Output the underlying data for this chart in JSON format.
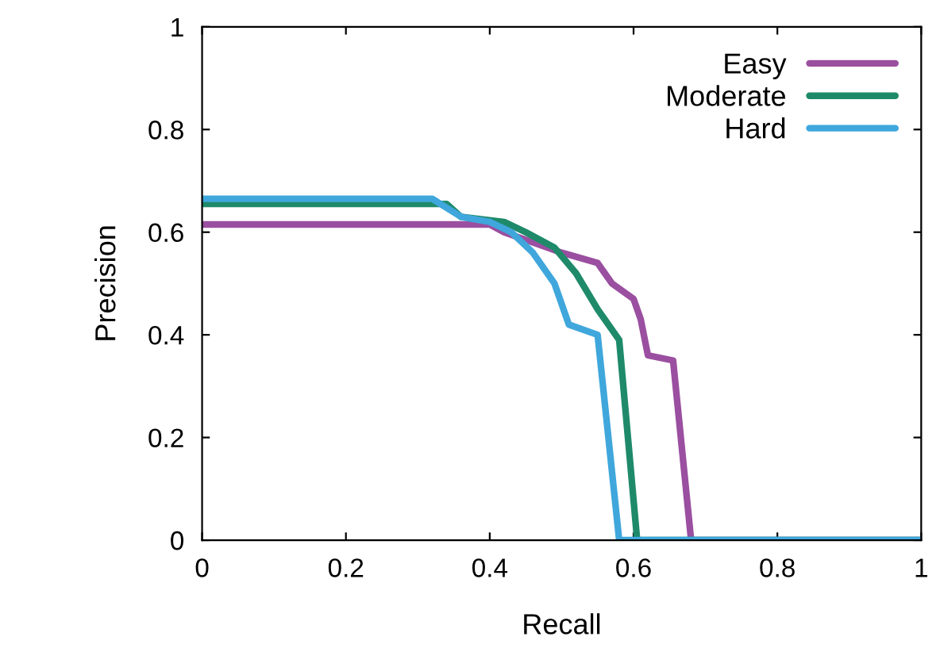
{
  "chart_data": {
    "type": "line",
    "xlabel": "Recall",
    "ylabel": "Precision",
    "xlim": [
      0,
      1
    ],
    "ylim": [
      0,
      1
    ],
    "xticks": [
      0,
      0.2,
      0.4,
      0.6,
      0.8,
      1
    ],
    "yticks": [
      0,
      0.2,
      0.4,
      0.6,
      0.8,
      1
    ],
    "grid": false,
    "legend": "top right",
    "marker": "none",
    "line_style": "solid",
    "series": [
      {
        "name": "Easy",
        "color": "#9a4fa0",
        "x": [
          0,
          0.4,
          0.42,
          0.45,
          0.5,
          0.55,
          0.57,
          0.6,
          0.61,
          0.62,
          0.655,
          0.68,
          1
        ],
        "values": [
          0.615,
          0.615,
          0.6,
          0.585,
          0.56,
          0.54,
          0.5,
          0.47,
          0.43,
          0.36,
          0.35,
          0,
          0
        ]
      },
      {
        "name": "Moderate",
        "color": "#1f8a6a",
        "x": [
          0,
          0.34,
          0.36,
          0.42,
          0.45,
          0.49,
          0.52,
          0.55,
          0.58,
          0.605,
          1
        ],
        "values": [
          0.655,
          0.655,
          0.63,
          0.62,
          0.6,
          0.57,
          0.52,
          0.45,
          0.39,
          0,
          0
        ]
      },
      {
        "name": "Hard",
        "color": "#3fa7dc",
        "x": [
          0,
          0.32,
          0.36,
          0.4,
          0.43,
          0.46,
          0.49,
          0.51,
          0.55,
          0.58,
          1
        ],
        "values": [
          0.665,
          0.665,
          0.63,
          0.62,
          0.6,
          0.56,
          0.5,
          0.42,
          0.4,
          0,
          0
        ]
      }
    ]
  }
}
